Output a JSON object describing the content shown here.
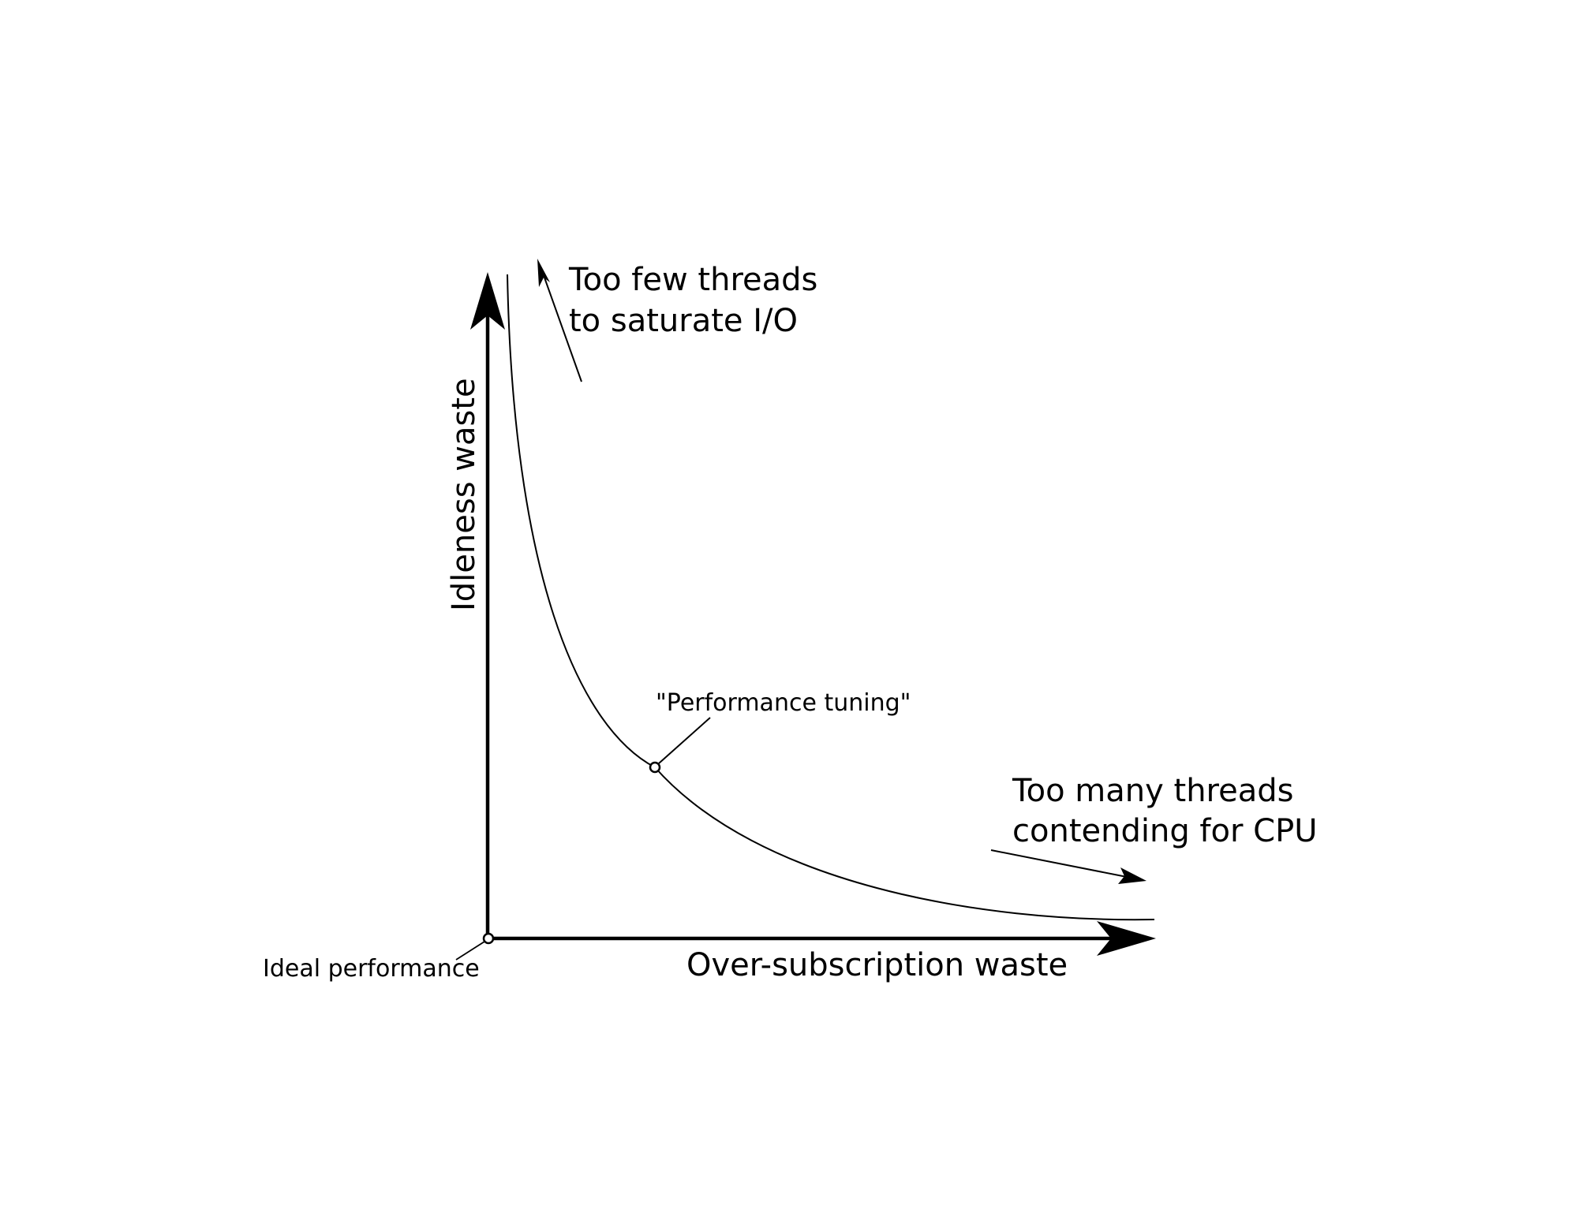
{
  "diagram": {
    "axes": {
      "y_label": "Idleness waste",
      "x_label": "Over-subscription waste"
    },
    "annotations": {
      "too_few_line1": "Too few threads",
      "too_few_line2": "to saturate I/O",
      "too_many_line1": "Too many threads",
      "too_many_line2": "contending for CPU",
      "performance_tuning": "\"Performance tuning\"",
      "ideal_performance": "Ideal performance"
    },
    "colors": {
      "ink": "#000000",
      "background": "#ffffff"
    }
  }
}
